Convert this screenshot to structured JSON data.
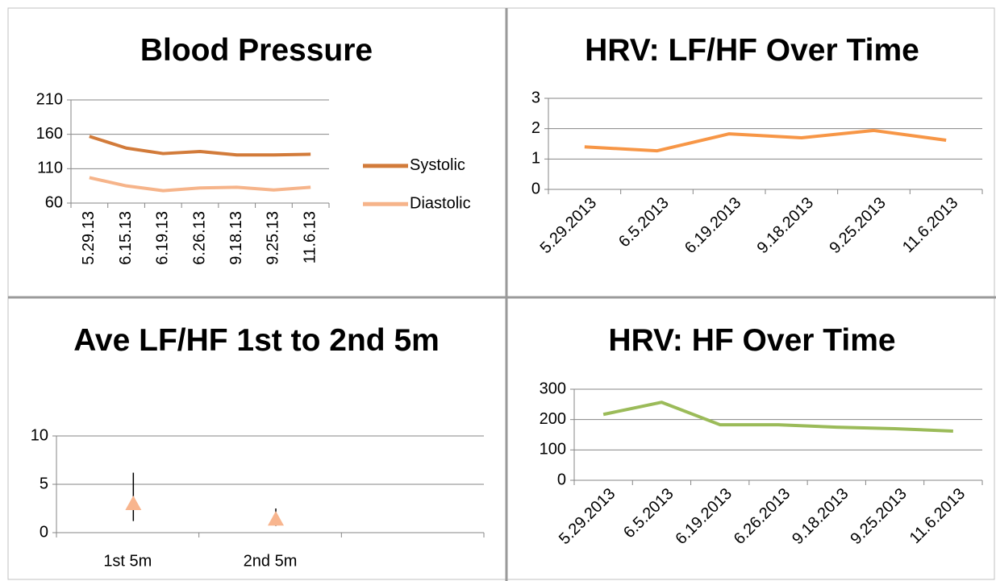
{
  "chart_data": [
    {
      "type": "line",
      "title": "Blood Pressure",
      "categories": [
        "5.29.13",
        "6.15.13",
        "6.19.13",
        "6.26.13",
        "9.18.13",
        "9.25.13",
        "11.6.13"
      ],
      "series": [
        {
          "name": "Systolic",
          "color": "#d27b3a",
          "values": [
            157,
            140,
            132,
            135,
            130,
            130,
            131
          ]
        },
        {
          "name": "Diastolic",
          "color": "#f6b48a",
          "values": [
            97,
            85,
            78,
            82,
            83,
            79,
            83
          ]
        }
      ],
      "ylim": [
        60,
        210
      ],
      "yticks": [
        60,
        110,
        160,
        210
      ],
      "grid": true,
      "legend": "right"
    },
    {
      "type": "line",
      "title": "HRV: LF/HF Over Time",
      "categories": [
        "5.29.2013",
        "6.5.2013",
        "6.19.2013",
        "9.18.2013",
        "9.25.2013",
        "11.6.2013"
      ],
      "values": [
        1.4,
        1.27,
        1.83,
        1.7,
        1.94,
        1.62
      ],
      "color": "#f79646",
      "ylim": [
        0,
        3
      ],
      "yticks": [
        0,
        1,
        2,
        3
      ],
      "grid": true
    },
    {
      "type": "errorbar",
      "title": "Ave LF/HF 1st to 2nd 5m",
      "categories": [
        "1st 5m",
        "2nd 5m",
        null
      ],
      "values": [
        3.0,
        1.4,
        null
      ],
      "error_plus": [
        3.2,
        1.1,
        null
      ],
      "error_minus": [
        1.8,
        0.7,
        null
      ],
      "color": "#f8b58e",
      "ylim": [
        0,
        10
      ],
      "yticks": [
        0,
        5,
        10
      ],
      "grid": true
    },
    {
      "type": "line",
      "title": "HRV: HF Over Time",
      "categories": [
        "5.29.2013",
        "6.5.2013",
        "6.19.2013",
        "6.26.2013",
        "9.18.2013",
        "9.25.2013",
        "11.6.2013"
      ],
      "values": [
        217,
        257,
        183,
        183,
        175,
        170,
        162
      ],
      "color": "#9bbb59",
      "ylim": [
        0,
        300
      ],
      "yticks": [
        0,
        100,
        200,
        300
      ],
      "grid": true
    }
  ]
}
